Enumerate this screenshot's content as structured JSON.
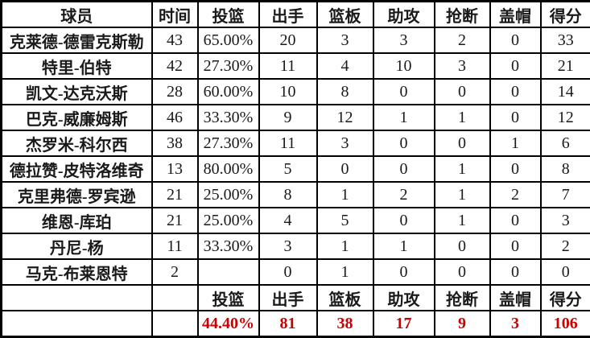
{
  "table": {
    "columns": [
      "球员",
      "时间",
      "投篮",
      "出手",
      "篮板",
      "助攻",
      "抢断",
      "盖帽",
      "得分"
    ],
    "players": [
      [
        "克莱德-德雷克斯勒",
        "43",
        "65.00%",
        "20",
        "3",
        "3",
        "2",
        "0",
        "33"
      ],
      [
        "特里-伯特",
        "42",
        "27.30%",
        "11",
        "4",
        "10",
        "3",
        "0",
        "21"
      ],
      [
        "凯文-达克沃斯",
        "28",
        "60.00%",
        "10",
        "8",
        "0",
        "0",
        "0",
        "14"
      ],
      [
        "巴克-威廉姆斯",
        "46",
        "33.30%",
        "9",
        "12",
        "1",
        "1",
        "0",
        "12"
      ],
      [
        "杰罗米-科尔西",
        "38",
        "27.30%",
        "11",
        "3",
        "0",
        "0",
        "1",
        "6"
      ],
      [
        "德拉赞-皮特洛维奇",
        "13",
        "80.00%",
        "5",
        "0",
        "0",
        "1",
        "0",
        "8"
      ],
      [
        "克里弗德-罗宾逊",
        "21",
        "25.00%",
        "8",
        "1",
        "2",
        "1",
        "2",
        "7"
      ],
      [
        "维恩-库珀",
        "21",
        "25.00%",
        "4",
        "5",
        "0",
        "1",
        "0",
        "3"
      ],
      [
        "丹尼-杨",
        "11",
        "33.30%",
        "3",
        "1",
        "1",
        "0",
        "0",
        "2"
      ],
      [
        "马克-布莱恩特",
        "2",
        "",
        "0",
        "1",
        "0",
        "0",
        "0",
        "0"
      ]
    ],
    "totals_header": [
      "",
      "",
      "投篮",
      "出手",
      "篮板",
      "助攻",
      "抢断",
      "盖帽",
      "得分"
    ],
    "totals": [
      "",
      "",
      "44.40%",
      "81",
      "38",
      "17",
      "9",
      "3",
      "106"
    ]
  },
  "colors": {
    "text": "#1a1a1a",
    "totals_text": "#cc0000",
    "border": "#000000",
    "background": "#ffffff"
  }
}
